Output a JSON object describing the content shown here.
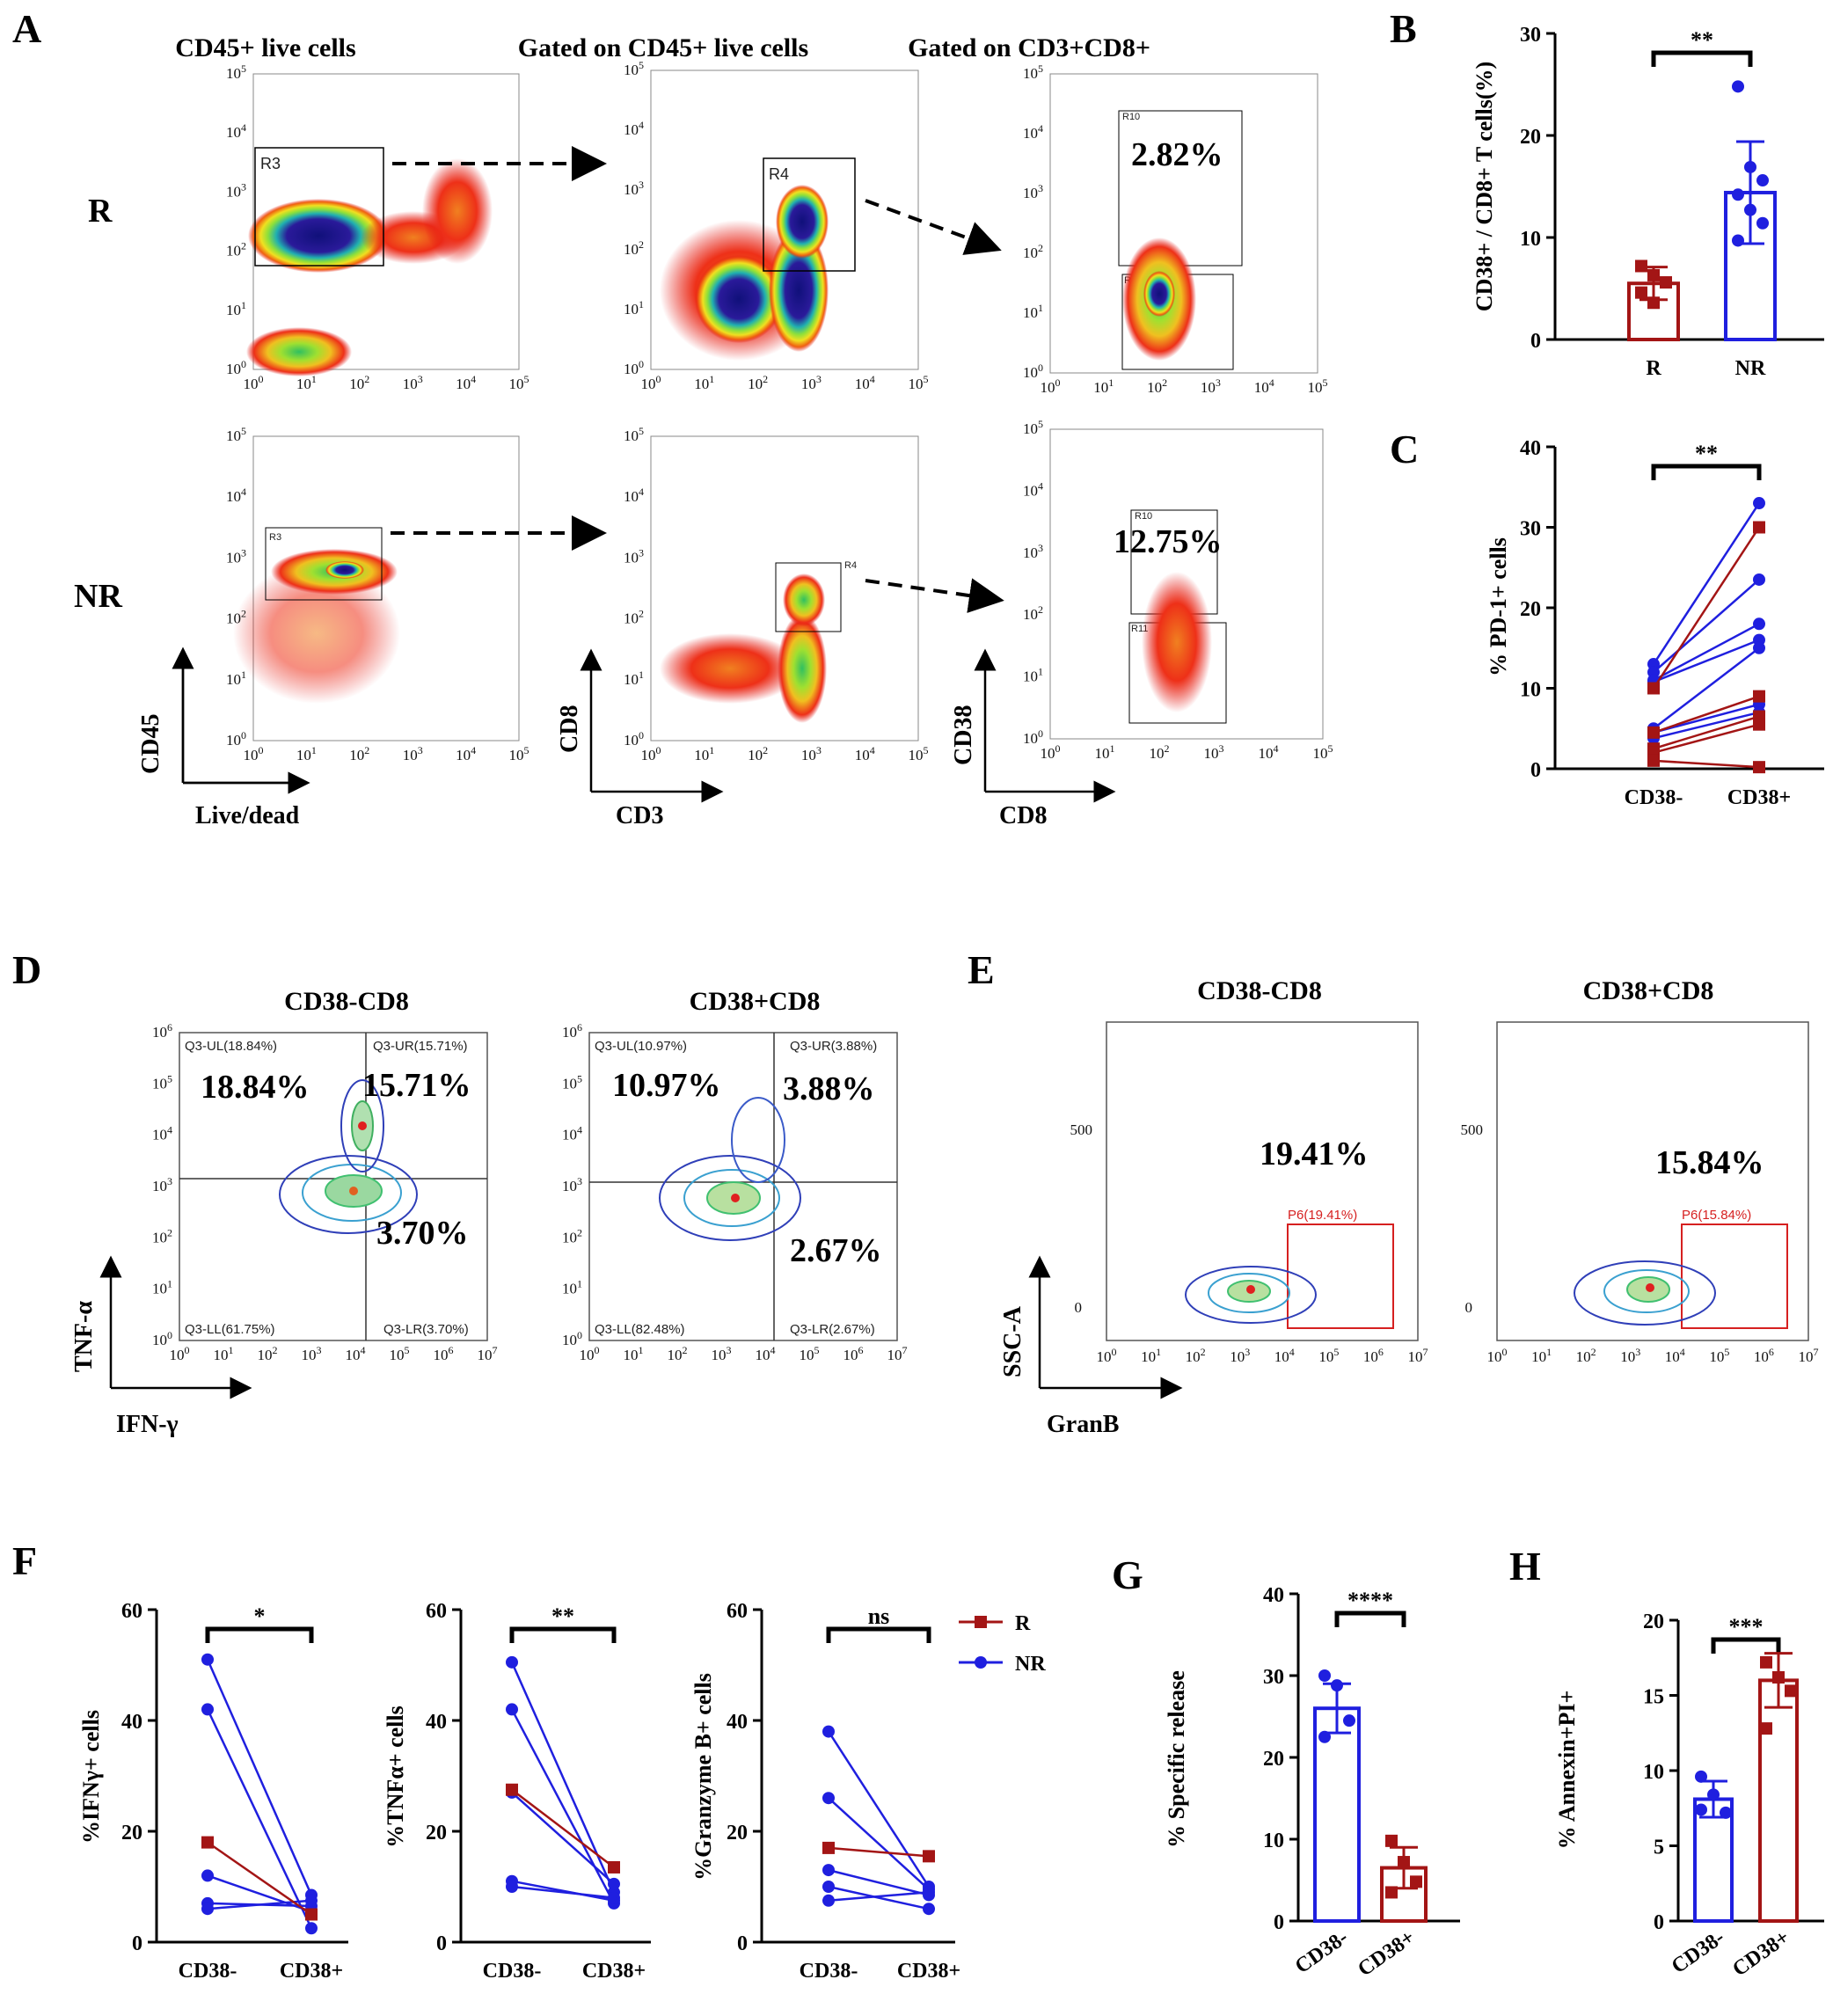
{
  "colors": {
    "R": "#a31515",
    "NR": "#1f1fdf",
    "gate_red": "#d62020",
    "contour_blue": "#2f3fb8"
  },
  "panels": {
    "A": {
      "label": "A",
      "col_titles": [
        "CD45+ live cells",
        "Gated on CD45+ live cells",
        "Gated on CD3+CD8+"
      ],
      "row_labels": [
        "R",
        "NR"
      ],
      "gates": [
        "R3",
        "R4",
        "R10",
        "R11"
      ],
      "percent_R": "2.82%",
      "percent_NR": "12.75%",
      "axes": {
        "col1_y": "CD45",
        "col1_x": "Live/dead",
        "col2_y": "CD8",
        "col2_x": "CD3",
        "col3_y": "CD38",
        "col3_x": "CD8"
      }
    },
    "B": {
      "label": "B"
    },
    "C": {
      "label": "C"
    },
    "D": {
      "label": "D",
      "titles": [
        "CD38-CD8",
        "CD38+CD8"
      ],
      "q_left": {
        "UL": "Q3-UL(18.84%)",
        "UR": "Q3-UR(15.71%)",
        "LL": "Q3-LL(61.75%)",
        "LR": "Q3-LR(3.70%)",
        "big_UL": "18.84%",
        "big_UR": "15.71%",
        "big_LR": "3.70%"
      },
      "q_right": {
        "UL": "Q3-UL(10.97%)",
        "UR": "Q3-UR(3.88%)",
        "LL": "Q3-LL(82.48%)",
        "LR": "Q3-LR(2.67%)",
        "big_UL": "10.97%",
        "big_UR": "3.88%",
        "big_LR": "2.67%"
      },
      "y_axis": "TNF-α",
      "x_axis": "IFN-γ"
    },
    "E": {
      "label": "E",
      "titles": [
        "CD38-CD8",
        "CD38+CD8"
      ],
      "gate_left": "P6(19.41%)",
      "gate_right": "P6(15.84%)",
      "big_left": "19.41%",
      "big_right": "15.84%",
      "y_axis": "SSC-A",
      "x_axis": "GranB"
    },
    "F": {
      "label": "F"
    },
    "G": {
      "label": "G"
    },
    "H": {
      "label": "H"
    }
  },
  "chart_data": [
    {
      "id": "B",
      "type": "bar",
      "categories": [
        "R",
        "NR"
      ],
      "values": [
        5.5,
        14.4
      ],
      "errors": [
        1.6,
        5.0
      ],
      "points": [
        [
          7.2,
          6.3,
          5.6,
          4.6,
          3.6
        ],
        [
          24.8,
          16.9,
          15.6,
          14.2,
          12.7,
          11.4,
          9.7
        ]
      ],
      "ylabel": "CD38+ / CD8+ T cells(%)",
      "ylim": [
        0,
        30
      ],
      "yticks": [
        0,
        10,
        20,
        30
      ],
      "significance": "**"
    },
    {
      "id": "C",
      "type": "line",
      "categories": [
        "CD38-",
        "CD38+"
      ],
      "series": [
        {
          "name": "NR",
          "values": [
            13.0,
            33.0
          ]
        },
        {
          "name": "NR",
          "values": [
            12.0,
            23.5
          ]
        },
        {
          "name": "NR",
          "values": [
            11.0,
            18.0
          ]
        },
        {
          "name": "NR",
          "values": [
            10.8,
            16.0
          ]
        },
        {
          "name": "NR",
          "values": [
            5.0,
            15.0
          ]
        },
        {
          "name": "NR",
          "values": [
            4.5,
            8.0
          ]
        },
        {
          "name": "NR",
          "values": [
            3.8,
            7.0
          ]
        },
        {
          "name": "R",
          "values": [
            10.0,
            30.0
          ]
        },
        {
          "name": "R",
          "values": [
            4.5,
            9.0
          ]
        },
        {
          "name": "R",
          "values": [
            2.5,
            6.5
          ]
        },
        {
          "name": "R",
          "values": [
            2.0,
            5.5
          ]
        },
        {
          "name": "R",
          "values": [
            1.0,
            0.2
          ]
        }
      ],
      "ylabel": "% PD-1+ cells",
      "ylim": [
        0,
        40
      ],
      "yticks": [
        0,
        10,
        20,
        30,
        40
      ],
      "significance": "**"
    },
    {
      "id": "F1",
      "type": "line",
      "categories": [
        "CD38-",
        "CD38+"
      ],
      "series": [
        {
          "name": "NR",
          "values": [
            51.0,
            8.5
          ]
        },
        {
          "name": "NR",
          "values": [
            42.0,
            2.5
          ]
        },
        {
          "name": "NR",
          "values": [
            12.0,
            5.5
          ]
        },
        {
          "name": "NR",
          "values": [
            7.0,
            6.5
          ]
        },
        {
          "name": "NR",
          "values": [
            6.0,
            7.5
          ]
        },
        {
          "name": "R",
          "values": [
            18.0,
            5.0
          ]
        }
      ],
      "ylabel": "%IFNγ+ cells",
      "ylim": [
        0,
        60
      ],
      "yticks": [
        0,
        20,
        40,
        60
      ],
      "significance": "*"
    },
    {
      "id": "F2",
      "type": "line",
      "categories": [
        "CD38-",
        "CD38+"
      ],
      "series": [
        {
          "name": "NR",
          "values": [
            50.5,
            9.0
          ]
        },
        {
          "name": "NR",
          "values": [
            42.0,
            7.0
          ]
        },
        {
          "name": "NR",
          "values": [
            27.0,
            10.5
          ]
        },
        {
          "name": "NR",
          "values": [
            11.0,
            7.5
          ]
        },
        {
          "name": "NR",
          "values": [
            10.0,
            8.0
          ]
        },
        {
          "name": "R",
          "values": [
            27.5,
            13.5
          ]
        }
      ],
      "ylabel": "%TNFα+ cells",
      "ylim": [
        0,
        60
      ],
      "yticks": [
        0,
        20,
        40,
        60
      ],
      "significance": "**"
    },
    {
      "id": "F3",
      "type": "line",
      "categories": [
        "CD38-",
        "CD38+"
      ],
      "series": [
        {
          "name": "NR",
          "values": [
            38.0,
            10.0
          ]
        },
        {
          "name": "NR",
          "values": [
            26.0,
            9.5
          ]
        },
        {
          "name": "NR",
          "values": [
            13.0,
            8.5
          ]
        },
        {
          "name": "NR",
          "values": [
            10.0,
            6.0
          ]
        },
        {
          "name": "NR",
          "values": [
            7.5,
            9.0
          ]
        },
        {
          "name": "R",
          "values": [
            17.0,
            15.5
          ]
        }
      ],
      "ylabel": "%Granzyme B+ cells",
      "ylim": [
        0,
        60
      ],
      "yticks": [
        0,
        20,
        40,
        60
      ],
      "significance": "ns",
      "legend": [
        "R",
        "NR"
      ]
    },
    {
      "id": "G",
      "type": "bar",
      "categories": [
        "CD38-",
        "CD38+"
      ],
      "values": [
        26.0,
        6.5
      ],
      "errors": [
        3.0,
        2.5
      ],
      "points": [
        [
          30.0,
          28.8,
          24.5,
          22.5
        ],
        [
          9.8,
          7.2,
          4.8,
          3.5
        ]
      ],
      "ylabel": "% Specific release",
      "ylim": [
        0,
        40
      ],
      "yticks": [
        0,
        10,
        20,
        30,
        40
      ],
      "significance": "****"
    },
    {
      "id": "H",
      "type": "bar",
      "categories": [
        "CD38-",
        "CD38+"
      ],
      "values": [
        8.1,
        16.0
      ],
      "errors": [
        1.2,
        1.8
      ],
      "points": [
        [
          9.6,
          8.4,
          7.2,
          7.4
        ],
        [
          17.2,
          16.2,
          15.3,
          12.8
        ]
      ],
      "ylabel": "% Annexin+PI+",
      "ylim": [
        0,
        20
      ],
      "yticks": [
        0,
        5,
        10,
        15,
        20
      ],
      "significance": "***"
    }
  ]
}
